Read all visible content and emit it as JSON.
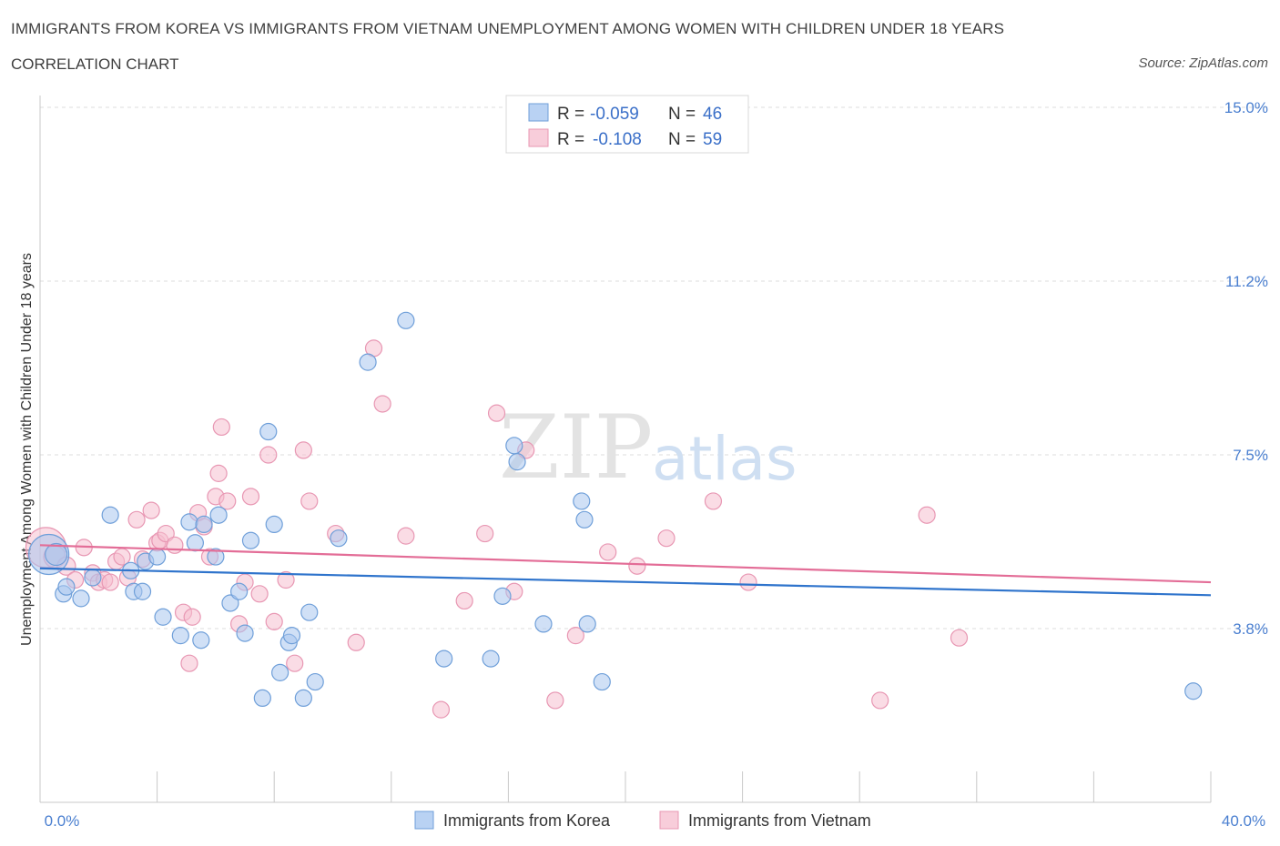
{
  "header": {
    "title": "IMMIGRANTS FROM KOREA VS IMMIGRANTS FROM VIETNAM UNEMPLOYMENT AMONG WOMEN WITH CHILDREN UNDER 18 YEARS",
    "subtitle": "CORRELATION CHART",
    "source": "Source: ZipAtlas.com"
  },
  "watermark": {
    "zip": "ZIP",
    "atlas": "atlas"
  },
  "legend": {
    "row1": {
      "r_label": "R =",
      "r_value": "-0.059",
      "n_label": "N =",
      "n_value": "46"
    },
    "row2": {
      "r_label": "R =",
      "r_value": "-0.108",
      "n_label": "N =",
      "n_value": "59"
    }
  },
  "colors": {
    "korea_fill": "#a9c6ef",
    "korea_stroke": "#6f9fd9",
    "korea_line": "#2f74cc",
    "vietnam_fill": "#f5bfd0",
    "vietnam_stroke": "#e897b3",
    "vietnam_line": "#e36d97",
    "tick_text": "#4a7fd0"
  },
  "chart_data": {
    "type": "scatter",
    "title": "IMMIGRANTS FROM KOREA VS IMMIGRANTS FROM VIETNAM UNEMPLOYMENT AMONG WOMEN WITH CHILDREN UNDER 18 YEARS",
    "xlabel": "",
    "ylabel": "Unemployment Among Women with Children Under 18 years",
    "xlim": [
      0,
      40
    ],
    "ylim": [
      0,
      15
    ],
    "x_tick_labels": [
      "0.0%",
      "40.0%"
    ],
    "y_ticks": [
      3.75,
      7.5,
      11.25,
      15.0
    ],
    "y_tick_labels": [
      "3.8%",
      "7.5%",
      "11.2%",
      "15.0%"
    ],
    "grid": true,
    "legend_position": "top-center",
    "series": [
      {
        "name": "Immigrants from Korea",
        "color": "#a9c6ef",
        "trend": {
          "x": [
            0,
            40
          ],
          "y": [
            5.05,
            4.47
          ]
        },
        "x": [
          0.3,
          0.55,
          0.8,
          0.9,
          1.4,
          1.8,
          2.4,
          3.1,
          3.2,
          3.5,
          3.6,
          4.0,
          4.2,
          4.8,
          5.1,
          5.3,
          5.5,
          5.6,
          6.0,
          6.1,
          6.5,
          6.8,
          7.0,
          7.2,
          7.6,
          7.8,
          8.0,
          8.2,
          8.5,
          8.6,
          9.0,
          9.2,
          9.4,
          10.2,
          11.2,
          12.5,
          13.8,
          15.4,
          15.8,
          16.2,
          16.3,
          17.2,
          18.5,
          18.6,
          18.7,
          19.2,
          39.4
        ],
        "y": [
          5.35,
          5.35,
          4.5,
          4.65,
          4.4,
          4.85,
          6.2,
          5.0,
          4.55,
          4.55,
          5.2,
          5.3,
          4.0,
          3.6,
          6.05,
          5.6,
          3.5,
          6.0,
          5.3,
          6.2,
          4.3,
          4.55,
          3.65,
          5.65,
          2.25,
          8.0,
          6.0,
          2.8,
          3.45,
          3.6,
          2.25,
          4.1,
          2.6,
          5.7,
          9.5,
          10.4,
          3.1,
          3.1,
          4.45,
          7.7,
          7.35,
          3.85,
          6.5,
          6.1,
          3.85,
          2.6,
          2.4
        ],
        "sizes": [
          22,
          12,
          9,
          9,
          9,
          9,
          9,
          9,
          9,
          9,
          9,
          9,
          9,
          9,
          9,
          9,
          9,
          9,
          9,
          9,
          9,
          9,
          9,
          9,
          9,
          9,
          9,
          9,
          9,
          9,
          9,
          9,
          9,
          9,
          9,
          9,
          9,
          9,
          9,
          9,
          9,
          9,
          9,
          9,
          9,
          9,
          9
        ]
      },
      {
        "name": "Immigrants from Vietnam",
        "color": "#f5bfd0",
        "trend": {
          "x": [
            0,
            40
          ],
          "y": [
            5.55,
            4.75
          ]
        },
        "x": [
          0.2,
          0.5,
          0.9,
          1.2,
          1.5,
          1.8,
          2.0,
          2.2,
          2.4,
          2.6,
          2.8,
          3.0,
          3.3,
          3.5,
          3.8,
          4.0,
          4.1,
          4.3,
          4.6,
          4.9,
          5.1,
          5.2,
          5.4,
          5.6,
          5.8,
          6.0,
          6.1,
          6.2,
          6.4,
          6.8,
          7.0,
          7.2,
          7.5,
          7.8,
          8.0,
          8.4,
          8.7,
          9.0,
          9.2,
          10.1,
          10.8,
          11.4,
          11.7,
          12.5,
          13.7,
          14.5,
          15.2,
          15.6,
          16.2,
          16.6,
          17.6,
          18.3,
          19.4,
          20.4,
          21.4,
          23.0,
          24.2,
          28.7,
          30.3,
          31.4
        ],
        "y": [
          5.5,
          5.3,
          5.1,
          4.8,
          5.5,
          4.95,
          4.75,
          4.8,
          4.75,
          5.2,
          5.3,
          4.85,
          6.1,
          5.25,
          6.3,
          5.6,
          5.65,
          5.8,
          5.55,
          4.1,
          3.0,
          4.0,
          6.25,
          5.95,
          5.3,
          6.6,
          7.1,
          8.1,
          6.5,
          3.85,
          4.75,
          6.6,
          4.5,
          7.5,
          3.9,
          4.8,
          3.0,
          7.6,
          6.5,
          5.8,
          3.45,
          9.8,
          8.6,
          5.75,
          2.0,
          4.35,
          5.8,
          8.4,
          4.55,
          7.6,
          2.2,
          3.6,
          5.4,
          5.1,
          5.7,
          6.5,
          4.75,
          2.2,
          6.2,
          3.55
        ],
        "sizes": [
          22,
          12,
          10,
          9,
          9,
          9,
          9,
          9,
          9,
          9,
          9,
          9,
          9,
          9,
          9,
          9,
          9,
          9,
          9,
          9,
          9,
          9,
          9,
          9,
          9,
          9,
          9,
          9,
          9,
          9,
          9,
          9,
          9,
          9,
          9,
          9,
          9,
          9,
          9,
          9,
          9,
          9,
          9,
          9,
          9,
          9,
          9,
          9,
          9,
          9,
          9,
          9,
          9,
          9,
          9,
          9,
          9,
          9,
          9,
          9
        ]
      }
    ]
  }
}
